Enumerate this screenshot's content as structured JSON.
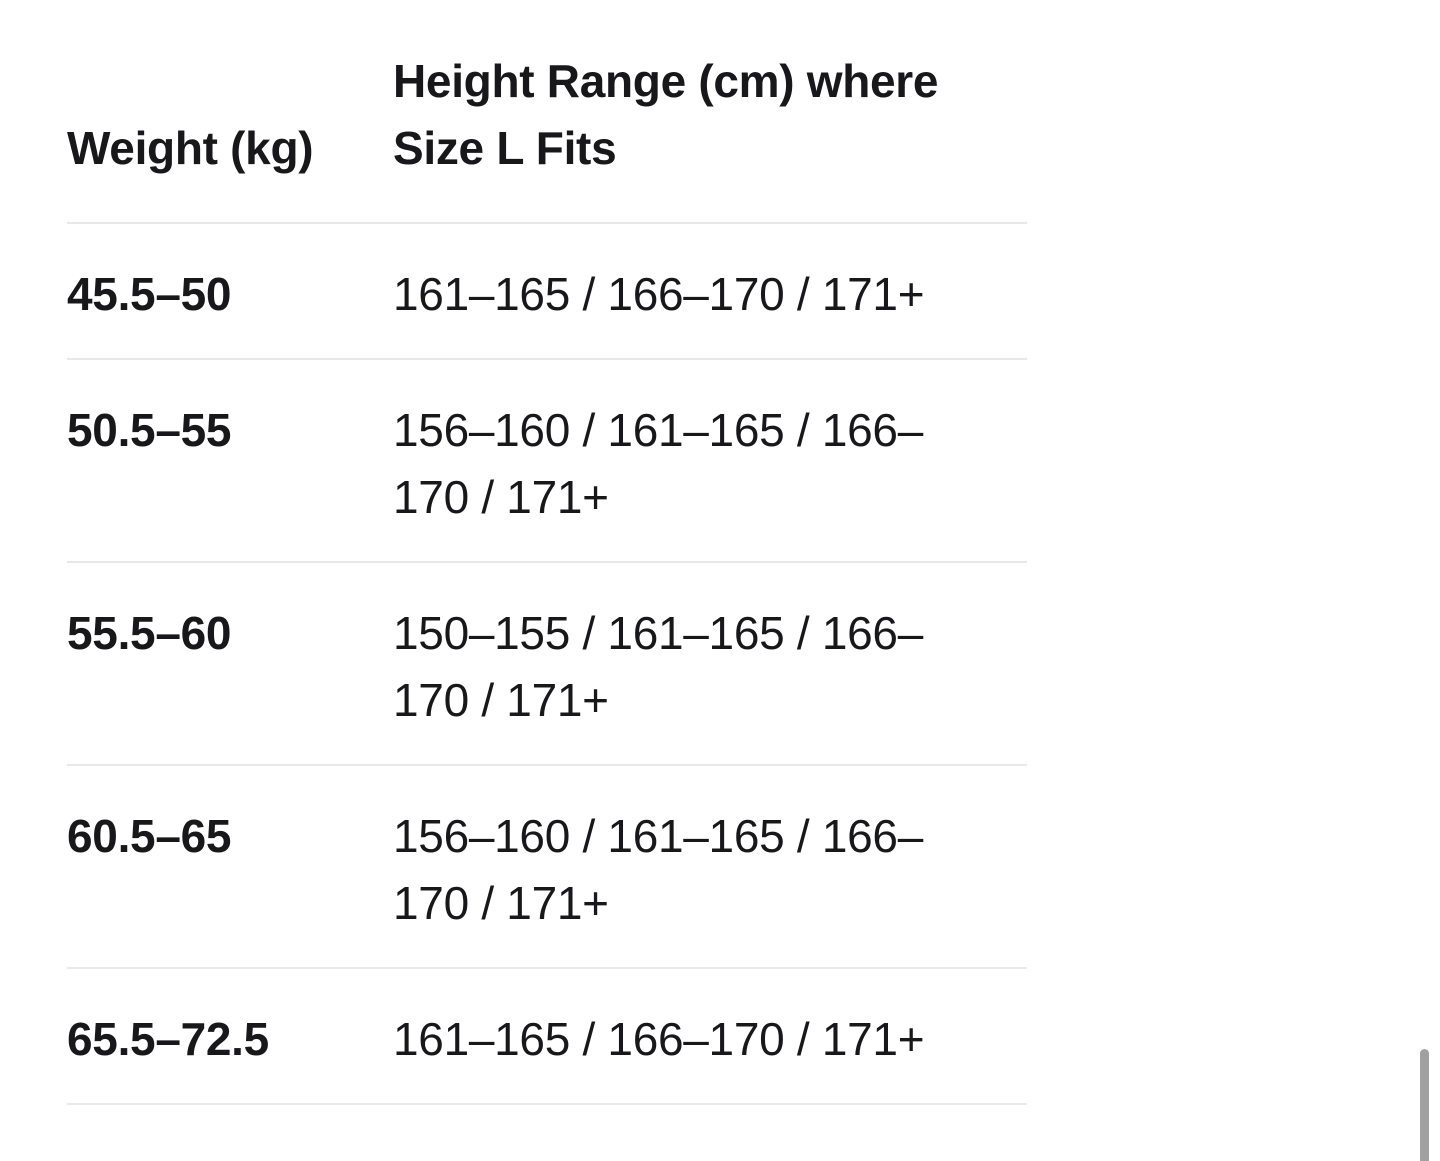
{
  "table": {
    "columns": [
      {
        "label": "Weight (kg)"
      },
      {
        "label": "Height Range (cm) where\nSize L Fits"
      }
    ],
    "rows": [
      {
        "weight": "45.5–50",
        "height_range": "161–165 / 166–170 / 171+"
      },
      {
        "weight": "50.5–55",
        "height_range": "156–160 / 161–165 / 166–\n170 / 171+"
      },
      {
        "weight": "55.5–60",
        "height_range": "150–155 / 161–165 / 166–\n170 / 171+"
      },
      {
        "weight": "60.5–65",
        "height_range": "156–160 / 161–165 / 166–\n170 / 171+"
      },
      {
        "weight": "65.5–72.5",
        "height_range": "161–165 / 166–170 / 171+"
      }
    ]
  },
  "colors": {
    "background": "#ffffff",
    "text": "#18181b",
    "divider": "#e8e8ea",
    "scrollbar": "#a1a1a1"
  }
}
